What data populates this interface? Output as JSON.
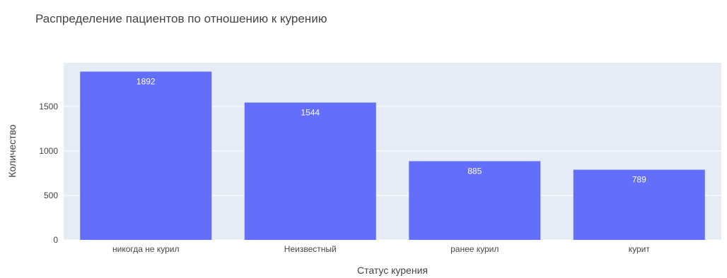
{
  "chart_data": {
    "type": "bar",
    "title": "Распределение пациентов по отношению к курению",
    "xlabel": "Статус курения",
    "ylabel": "Количество",
    "categories": [
      "никогда не курил",
      "Неизвестный",
      "ранее курил",
      "курит"
    ],
    "values": [
      1892,
      1544,
      885,
      789
    ],
    "data_labels": [
      "1892",
      "1544",
      "885",
      "789"
    ],
    "ylim": [
      0,
      1991
    ],
    "yticks": [
      0,
      500,
      1000,
      1500
    ],
    "ytick_labels": [
      "0",
      "500",
      "1000",
      "1500"
    ],
    "grid": true,
    "legend": "none",
    "colors": {
      "bar": "#636efa",
      "plot_bg": "#e5ecf6",
      "grid": "#ffffff",
      "text": "#444444",
      "bar_label": "#ffffff"
    }
  }
}
